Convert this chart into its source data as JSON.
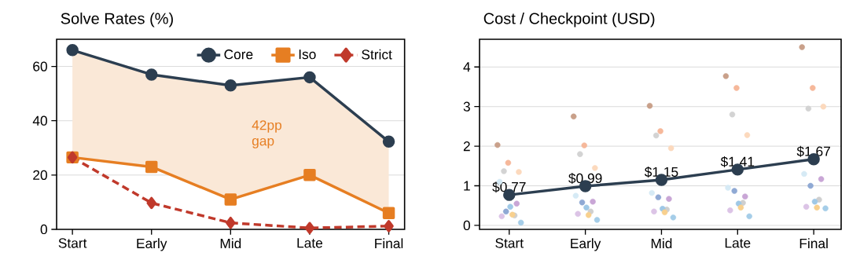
{
  "chart_data": [
    {
      "type": "line",
      "title": "Solve Rates (%)",
      "categories": [
        "Start",
        "Early",
        "Mid",
        "Late",
        "Final"
      ],
      "ylim": [
        0,
        70
      ],
      "yticks": [
        0,
        20,
        40,
        60
      ],
      "grid": "y",
      "legend": "top right",
      "series": [
        {
          "name": "Core",
          "color": "#2c3e50",
          "marker": "circle",
          "line_style": "solid",
          "values": [
            66,
            57,
            53,
            56,
            32.3
          ]
        },
        {
          "name": "Iso",
          "color": "#e67e22",
          "marker": "square",
          "line_style": "solid",
          "values": [
            26.5,
            23,
            11,
            20,
            6
          ],
          "lower": [
            26.5,
            23,
            11,
            20,
            6
          ],
          "upper": [
            66,
            57,
            53,
            56,
            32.3
          ]
        },
        {
          "name": "Strict",
          "color": "#c0392b",
          "marker": "diamond",
          "line_style": "dashed",
          "values": [
            26.5,
            9.7,
            2.4,
            0.5,
            1.2
          ]
        }
      ],
      "annotations": [
        "42pp gap"
      ]
    },
    {
      "type": "scatter",
      "title": "Cost / Checkpoint (USD)",
      "categories": [
        "Start",
        "Early",
        "Mid",
        "Late",
        "Final"
      ],
      "ylim": [
        -0.1,
        4.7
      ],
      "yticks": [
        0,
        1,
        2,
        3,
        4
      ],
      "grid": "y",
      "series": [
        {
          "color": "#c9a08a",
          "values": [
            2.03,
            2.75,
            3.02,
            3.77,
            4.5
          ]
        },
        {
          "color": "#f6b89a",
          "values": [
            1.58,
            2.02,
            2.38,
            3.47,
            3.47
          ]
        },
        {
          "color": "#fcd9bd",
          "values": [
            1.35,
            1.45,
            1.95,
            2.28,
            3.0
          ]
        },
        {
          "color": "#d3d3d3",
          "values": [
            1.37,
            1.8,
            2.27,
            2.8,
            2.95
          ]
        },
        {
          "color": "#cfcfcf",
          "values": [
            0.25,
            0.35,
            0.4,
            0.57,
            0.65
          ]
        },
        {
          "color": "#d6eaf5",
          "values": [
            1.1,
            0.75,
            0.82,
            0.95,
            1.3
          ]
        },
        {
          "color": "#9fc8e6",
          "values": [
            0.47,
            0.45,
            0.42,
            0.55,
            0.6
          ]
        },
        {
          "color": "#a5cde8",
          "values": [
            0.07,
            0.14,
            0.2,
            0.23,
            0.43
          ]
        },
        {
          "color": "#8fa9d4",
          "values": [
            0.35,
            0.58,
            0.71,
            0.87,
            1.0
          ]
        },
        {
          "color": "#c9a6d6",
          "values": [
            0.55,
            0.6,
            0.67,
            0.73,
            1.17
          ]
        },
        {
          "color": "#dcc4e6",
          "values": [
            0.23,
            0.29,
            0.35,
            0.38,
            0.47
          ]
        },
        {
          "color": "#f8d08e",
          "values": [
            0.27,
            0.26,
            0.33,
            0.45,
            0.45
          ]
        },
        {
          "type": "line",
          "color": "#2c3e50",
          "marker": "circle",
          "line_style": "solid",
          "values": [
            0.77,
            0.99,
            1.15,
            1.41,
            1.67
          ],
          "value_labels": [
            "$0.77",
            "$0.99",
            "$1.15",
            "$1.41",
            "$1.67"
          ]
        }
      ]
    }
  ]
}
